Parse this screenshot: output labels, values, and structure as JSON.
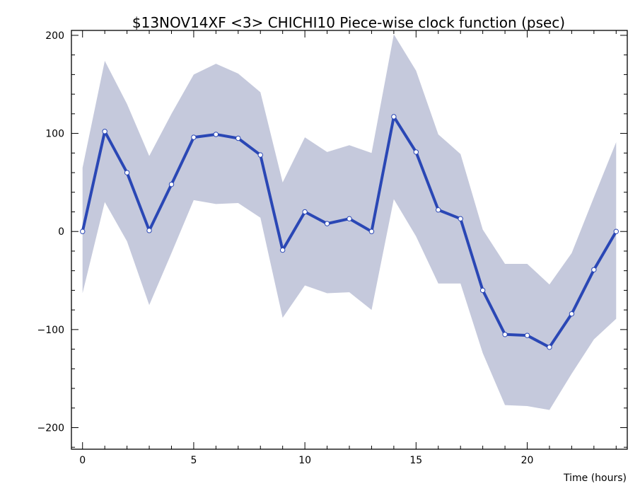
{
  "chart_data": {
    "type": "line",
    "title": "$13NOV14XF <3>  CHICHI10  Piece-wise clock function (psec)",
    "xlabel": "Time (hours)",
    "ylabel": "",
    "xlim": [
      -0.5,
      24.5
    ],
    "ylim": [
      -222,
      205
    ],
    "xticks": [
      0,
      5,
      10,
      15,
      20
    ],
    "yticks": [
      -200,
      -100,
      0,
      100,
      200
    ],
    "xtick_labels": [
      "0",
      "5",
      "10",
      "15",
      "20"
    ],
    "ytick_labels": [
      "−200",
      "−100",
      "0",
      "100",
      "200"
    ],
    "grid": false,
    "series": [
      {
        "x": [
          0,
          1,
          2,
          3,
          4,
          5,
          6,
          7,
          8,
          9,
          10,
          11,
          12,
          13,
          14,
          15,
          16,
          17,
          18,
          19,
          20,
          21,
          22,
          23,
          24
        ],
        "values": [
          0,
          102,
          60,
          1,
          48,
          96,
          99,
          95,
          78,
          -19,
          20,
          8,
          13,
          0,
          117,
          81,
          22,
          13,
          -60,
          -105,
          -106,
          -118,
          -84,
          -39,
          0
        ],
        "lower": [
          -63,
          30,
          -10,
          -75,
          -22,
          32,
          28,
          29,
          14,
          -88,
          -55,
          -63,
          -62,
          -80,
          33,
          -5,
          -53,
          -53,
          -124,
          -177,
          -178,
          -182,
          -145,
          -110,
          -89
        ],
        "upper": [
          65,
          174,
          130,
          77,
          120,
          160,
          171,
          161,
          142,
          50,
          96,
          81,
          88,
          80,
          201,
          164,
          99,
          79,
          2,
          -33,
          -33,
          -54,
          -22,
          35,
          91
        ]
      }
    ],
    "colors": {
      "line": "#2a47b5",
      "band": "#c5c9dc",
      "marker_fill": "#ffffff",
      "marker_stroke": "#2a47b5",
      "axis": "#000000"
    }
  }
}
